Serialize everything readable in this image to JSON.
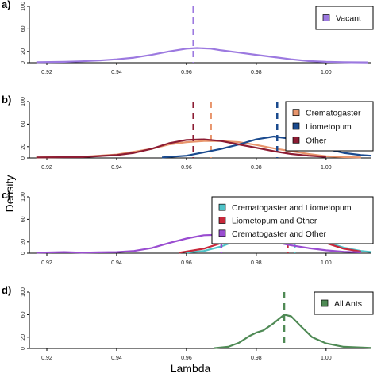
{
  "figure": {
    "xlabel": "Lambda",
    "ylabel": "Density"
  },
  "chart_data": [
    {
      "type": "line",
      "panel": "a)",
      "xlim": [
        0.915,
        1.013
      ],
      "ylim": [
        0,
        100
      ],
      "xticks": [
        0.92,
        0.94,
        0.96,
        0.98,
        1.0
      ],
      "xtick_labels": [
        "0.92",
        "0.94",
        "0.96",
        "0.98",
        "1.00"
      ],
      "yticks": [
        0,
        20,
        60,
        100
      ],
      "ytick_labels": [
        "0",
        "20",
        "60",
        "100"
      ],
      "legend_placement": "top-right",
      "series": [
        {
          "name": "Vacant",
          "color": "#9c79e0",
          "density": [
            [
              0.917,
              1
            ],
            [
              0.925,
              1.5
            ],
            [
              0.93,
              2.5
            ],
            [
              0.935,
              4
            ],
            [
              0.94,
              6
            ],
            [
              0.945,
              9
            ],
            [
              0.95,
              14
            ],
            [
              0.955,
              20
            ],
            [
              0.96,
              25
            ],
            [
              0.963,
              26
            ],
            [
              0.967,
              25
            ],
            [
              0.97,
              22
            ],
            [
              0.975,
              18
            ],
            [
              0.98,
              14
            ],
            [
              0.985,
              10
            ],
            [
              0.99,
              6
            ],
            [
              0.995,
              3
            ],
            [
              1.0,
              1.5
            ],
            [
              1.005,
              1
            ],
            [
              1.012,
              0.5
            ]
          ],
          "mean": 0.962
        }
      ]
    },
    {
      "type": "line",
      "panel": "b)",
      "xlim": [
        0.915,
        1.013
      ],
      "ylim": [
        0,
        100
      ],
      "xticks": [
        0.92,
        0.94,
        0.96,
        0.98,
        1.0
      ],
      "xtick_labels": [
        "0.92",
        "0.94",
        "0.96",
        "0.98",
        "1.00"
      ],
      "yticks": [
        0,
        20,
        60,
        100
      ],
      "ytick_labels": [
        "0",
        "20",
        "60",
        "100"
      ],
      "legend_placement": "top-right",
      "series": [
        {
          "name": "Crematogaster",
          "color": "#e8956c",
          "density": [
            [
              0.917,
              1
            ],
            [
              0.93,
              2
            ],
            [
              0.94,
              6
            ],
            [
              0.95,
              16
            ],
            [
              0.955,
              24
            ],
            [
              0.96,
              28
            ],
            [
              0.965,
              30
            ],
            [
              0.97,
              30
            ],
            [
              0.975,
              28
            ],
            [
              0.98,
              23
            ],
            [
              0.985,
              17
            ],
            [
              0.99,
              12
            ],
            [
              0.995,
              7
            ],
            [
              1.0,
              3
            ],
            [
              1.005,
              1.5
            ],
            [
              1.01,
              1
            ]
          ],
          "mean": 0.967
        },
        {
          "name": "Liometopum",
          "color": "#1a4a8e",
          "density": [
            [
              0.953,
              1
            ],
            [
              0.96,
              4
            ],
            [
              0.965,
              10
            ],
            [
              0.97,
              16
            ],
            [
              0.975,
              24
            ],
            [
              0.98,
              33
            ],
            [
              0.985,
              38
            ],
            [
              0.99,
              34
            ],
            [
              0.995,
              26
            ],
            [
              1.0,
              16
            ],
            [
              1.005,
              9
            ],
            [
              1.01,
              5
            ],
            [
              1.013,
              4
            ]
          ],
          "mean": 0.986
        },
        {
          "name": "Other",
          "color": "#8c1c33",
          "density": [
            [
              0.917,
              1
            ],
            [
              0.93,
              1.5
            ],
            [
              0.94,
              5
            ],
            [
              0.945,
              9
            ],
            [
              0.95,
              16
            ],
            [
              0.955,
              26
            ],
            [
              0.96,
              32
            ],
            [
              0.965,
              33
            ],
            [
              0.97,
              30
            ],
            [
              0.975,
              24
            ],
            [
              0.98,
              18
            ],
            [
              0.985,
              12
            ],
            [
              0.99,
              7
            ],
            [
              0.995,
              4
            ],
            [
              1.0,
              2
            ]
          ],
          "mean": 0.962
        }
      ]
    },
    {
      "type": "line",
      "panel": "c)",
      "xlim": [
        0.915,
        1.013
      ],
      "ylim": [
        0,
        100
      ],
      "xticks": [
        0.92,
        0.94,
        0.96,
        0.98,
        1.0
      ],
      "xtick_labels": [
        "0.92",
        "0.94",
        "0.96",
        "0.98",
        "1.00"
      ],
      "yticks": [
        0,
        20,
        60,
        100
      ],
      "ytick_labels": [
        "0",
        "20",
        "60",
        "100"
      ],
      "legend_placement": "top-right",
      "series": [
        {
          "name": "Crematogaster and Liometopum",
          "color": "#4fc3c8",
          "density": [
            [
              0.96,
              1
            ],
            [
              0.965,
              4
            ],
            [
              0.97,
              12
            ],
            [
              0.975,
              24
            ],
            [
              0.98,
              34
            ],
            [
              0.985,
              38
            ],
            [
              0.99,
              36
            ],
            [
              0.995,
              30
            ],
            [
              1.0,
              20
            ],
            [
              1.005,
              10
            ],
            [
              1.01,
              4
            ],
            [
              1.013,
              2
            ]
          ],
          "mean": 0.991
        },
        {
          "name": "Liometopum and Other",
          "color": "#c8283a",
          "density": [
            [
              0.958,
              1
            ],
            [
              0.965,
              8
            ],
            [
              0.97,
              18
            ],
            [
              0.975,
              30
            ],
            [
              0.98,
              40
            ],
            [
              0.985,
              44
            ],
            [
              0.99,
              38
            ],
            [
              0.995,
              30
            ],
            [
              1.0,
              18
            ],
            [
              1.005,
              8
            ],
            [
              1.01,
              3
            ]
          ],
          "mean": 0.989
        },
        {
          "name": "Crematogaster and Other",
          "color": "#9a4dd1",
          "density": [
            [
              0.917,
              1
            ],
            [
              0.925,
              2
            ],
            [
              0.93,
              1
            ],
            [
              0.935,
              1.5
            ],
            [
              0.94,
              2
            ],
            [
              0.945,
              4
            ],
            [
              0.95,
              9
            ],
            [
              0.955,
              18
            ],
            [
              0.96,
              26
            ],
            [
              0.965,
              32
            ],
            [
              0.97,
              33
            ],
            [
              0.975,
              30
            ],
            [
              0.98,
              26
            ],
            [
              0.985,
              20
            ],
            [
              0.99,
              14
            ],
            [
              0.995,
              9
            ],
            [
              1.0,
              5
            ],
            [
              1.005,
              2.5
            ],
            [
              1.01,
              1.5
            ]
          ],
          "mean": 0.97
        }
      ]
    },
    {
      "type": "line",
      "panel": "d)",
      "xlim": [
        0.915,
        1.013
      ],
      "ylim": [
        0,
        100
      ],
      "xticks": [
        0.92,
        0.94,
        0.96,
        0.98,
        1.0
      ],
      "xtick_labels": [
        "0.92",
        "0.94",
        "0.96",
        "0.98",
        "1.00"
      ],
      "yticks": [
        0,
        20,
        60,
        100
      ],
      "ytick_labels": [
        "0",
        "20",
        "60",
        "100"
      ],
      "legend_placement": "top-right",
      "series": [
        {
          "name": "All Ants",
          "color": "#4f8a55",
          "density": [
            [
              0.968,
              0.5
            ],
            [
              0.972,
              3
            ],
            [
              0.975,
              10
            ],
            [
              0.978,
              22
            ],
            [
              0.98,
              28
            ],
            [
              0.982,
              32
            ],
            [
              0.985,
              45
            ],
            [
              0.988,
              60
            ],
            [
              0.99,
              57
            ],
            [
              0.993,
              38
            ],
            [
              0.996,
              20
            ],
            [
              1.0,
              9
            ],
            [
              1.005,
              3
            ],
            [
              1.013,
              1
            ]
          ],
          "mean": 0.988
        }
      ]
    }
  ]
}
